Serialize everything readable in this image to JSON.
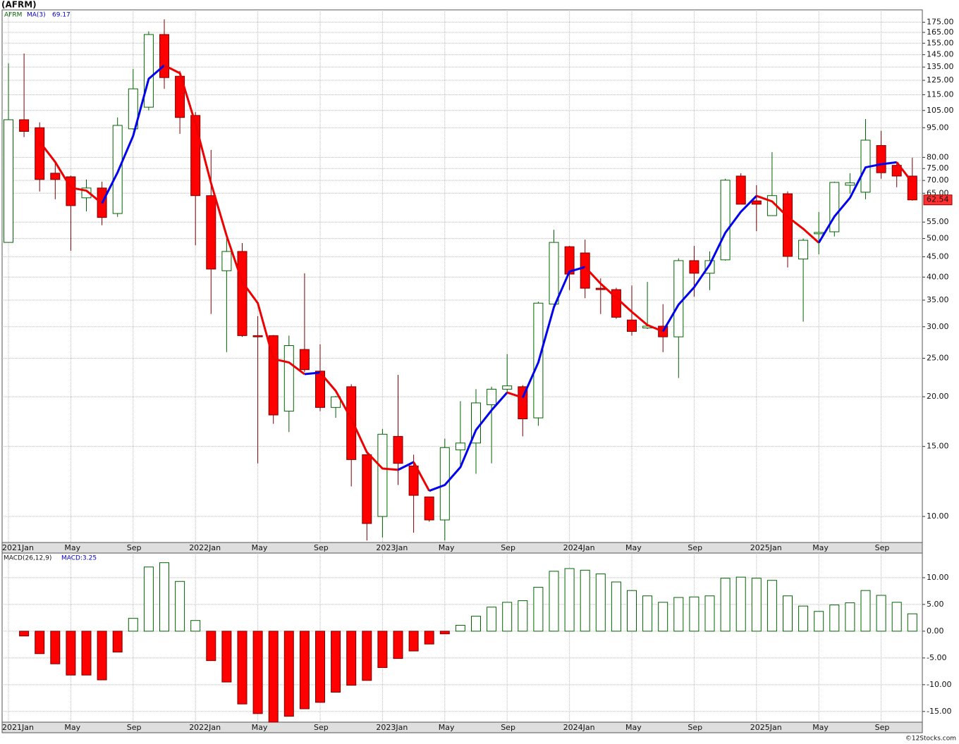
{
  "chart_data": [
    {
      "type": "candlestick",
      "title": "(AFRM)",
      "legend": "AFRM",
      "categories": [
        "2021Jan",
        null,
        null,
        null,
        "May",
        null,
        null,
        null,
        "Sep",
        null,
        null,
        null,
        "2022Jan",
        null,
        null,
        null,
        "May",
        null,
        null,
        null,
        "Sep",
        null,
        null,
        null,
        "2023Jan",
        null,
        null,
        null,
        "May",
        null,
        null,
        null,
        "Sep",
        null,
        null,
        null,
        "2024Jan",
        null,
        null,
        null,
        "May",
        null,
        null,
        null,
        "Sep",
        null,
        null,
        null,
        "2025Jan",
        null,
        null,
        null,
        "May",
        null,
        null,
        null,
        "Sep",
        null,
        null
      ],
      "open": [
        48.9,
        99.5,
        95,
        73,
        71.5,
        63.3,
        67,
        57.8,
        94.4,
        107,
        163,
        128,
        102,
        64.1,
        41.5,
        46.4,
        28.5,
        28.5,
        18.4,
        26.3,
        23.2,
        18.8,
        21.2,
        14.3,
        10.0,
        15.9,
        13.4,
        11.2,
        9.8,
        14.7,
        15.3,
        19.1,
        20.9,
        21.2,
        17.7,
        34.2,
        47.7,
        46.0,
        37.5,
        37.2,
        31.2,
        29.8,
        30.1,
        28.3,
        44.0,
        40.9,
        44.2,
        71.8,
        62.2,
        57.1,
        64.8,
        44.4,
        51.4,
        52.0,
        68.1,
        65.4,
        85.7,
        76.4,
        71.8
      ],
      "high": [
        138,
        146,
        98,
        77.9,
        72,
        70.4,
        69.5,
        100.8,
        133.5,
        166,
        178,
        132,
        104,
        83.5,
        50.1,
        48.7,
        31.9,
        28.6,
        28.5,
        40.9,
        27.1,
        20.1,
        21.5,
        14.3,
        16.6,
        22.7,
        14.3,
        11.2,
        15.7,
        19.5,
        20.9,
        21.2,
        25.6,
        21.4,
        34.7,
        52.6,
        47.9,
        49.7,
        39.7,
        37.6,
        38.1,
        38.9,
        34.2,
        44.6,
        47.9,
        46.4,
        70.7,
        73,
        68.1,
        82.5,
        65.7,
        50.0,
        58.3,
        69.5,
        73,
        99.9,
        93.3,
        77.9,
        79.9
      ],
      "low": [
        48.9,
        90,
        65.7,
        62.8,
        46.6,
        58.5,
        54,
        56.7,
        94,
        105,
        119,
        91.7,
        48.1,
        32.3,
        25.9,
        28.3,
        13.6,
        17.1,
        16.3,
        23.1,
        18.4,
        17.7,
        11.9,
        8.7,
        8.85,
        12.0,
        9.1,
        9.7,
        8.7,
        13.5,
        12.8,
        13.6,
        20.3,
        15.9,
        16.9,
        34,
        37.1,
        35.4,
        32.3,
        31.4,
        28.5,
        29.6,
        25.9,
        22.3,
        35.7,
        37.1,
        44,
        61,
        52.2,
        57,
        42.3,
        30.9,
        45.6,
        50.6,
        64.8,
        62.8,
        70.7,
        67.3,
        62.3
      ],
      "close": [
        99.5,
        93,
        70.4,
        70.4,
        60.5,
        67.0,
        56.5,
        96.3,
        119,
        163,
        127,
        100.8,
        64.1,
        41.9,
        46.4,
        28.5,
        28.3,
        18.0,
        26.9,
        23.4,
        18.8,
        20.0,
        13.9,
        9.6,
        16.1,
        13.6,
        11.3,
        9.8,
        14.9,
        15.3,
        19.3,
        20.9,
        21.3,
        17.6,
        34.4,
        48.9,
        40.7,
        37.5,
        37.2,
        31.7,
        29.2,
        30.1,
        28.3,
        44.0,
        40.9,
        44.0,
        70.1,
        61.0,
        61.0,
        64.1,
        45.1,
        49.5,
        51.8,
        69.2,
        69.0,
        88.4,
        73.2,
        71.8,
        62.54
      ],
      "up_color": "#ffffff",
      "up_edge": "#006400",
      "down_color": "#ff0000",
      "down_edge": "#7a0000",
      "log_scale": true,
      "grid": true,
      "ylim": [
        8.6,
        188
      ],
      "yticks": [
        {
          "value": 10,
          "label": "10.00"
        },
        {
          "value": 15,
          "label": "15.00"
        },
        {
          "value": 20,
          "label": "20.00"
        },
        {
          "value": 25,
          "label": "25.00"
        },
        {
          "value": 30,
          "label": "30.00"
        },
        {
          "value": 35,
          "label": "35.00"
        },
        {
          "value": 40,
          "label": "40.00"
        },
        {
          "value": 45,
          "label": "45.00"
        },
        {
          "value": 50,
          "label": "50.00"
        },
        {
          "value": 55,
          "label": "55.00"
        },
        {
          "value": 65,
          "label": "65.00"
        },
        {
          "value": 70,
          "label": "70.00"
        },
        {
          "value": 75,
          "label": "75.00"
        },
        {
          "value": 80,
          "label": "80.00"
        },
        {
          "value": 95,
          "label": "95.00"
        },
        {
          "value": 105,
          "label": "105.00"
        },
        {
          "value": 115,
          "label": "115.00"
        },
        {
          "value": 125,
          "label": "125.00"
        },
        {
          "value": 135,
          "label": "135.00"
        },
        {
          "value": 145,
          "label": "145.00"
        },
        {
          "value": 155,
          "label": "155.00"
        },
        {
          "value": 165,
          "label": "165.00"
        },
        {
          "value": 175,
          "label": "175.00"
        }
      ],
      "last_label_color": "#ff3030",
      "overlays": [
        {
          "name": "MA(3)",
          "rise_color": "#0000ee",
          "fall_color": "#ee0000",
          "values": [
            null,
            null,
            87.6,
            77.9,
            67.1,
            66.0,
            61.3,
            73.3,
            90.6,
            126.1,
            136.3,
            130.3,
            97.3,
            68.9,
            50.8,
            38.9,
            34.4,
            24.9,
            24.4,
            22.8,
            23.0,
            20.7,
            17.6,
            14.5,
            13.2,
            13.1,
            13.7,
            11.6,
            12.0,
            13.3,
            16.5,
            18.5,
            20.5,
            19.9,
            24.4,
            33.6,
            41.3,
            42.4,
            38.5,
            35.5,
            32.7,
            30.3,
            29.2,
            34.1,
            37.7,
            43.0,
            51.7,
            58.4,
            64.0,
            62.0,
            56.7,
            52.9,
            48.8,
            56.8,
            63.3,
            75.5,
            76.9,
            77.8,
            69.17
          ]
        }
      ]
    },
    {
      "type": "bar",
      "title": "MACD(26,12,9)",
      "legend": "MACD:3.25",
      "categories": [
        "2021Jan",
        null,
        null,
        null,
        "May",
        null,
        null,
        null,
        "Sep",
        null,
        null,
        null,
        "2022Jan",
        null,
        null,
        null,
        "May",
        null,
        null,
        null,
        "Sep",
        null,
        null,
        null,
        "2023Jan",
        null,
        null,
        null,
        "May",
        null,
        null,
        null,
        "Sep",
        null,
        null,
        null,
        "2024Jan",
        null,
        null,
        null,
        "May",
        null,
        null,
        null,
        "Sep",
        null,
        null,
        null,
        "2025Jan",
        null,
        null,
        null,
        "May",
        null,
        null,
        null,
        "Sep",
        null,
        null
      ],
      "values": [
        null,
        -0.9,
        -4.2,
        -6.1,
        -8.2,
        -8.2,
        -9.1,
        -3.9,
        2.4,
        12.0,
        12.8,
        9.3,
        2.0,
        -5.5,
        -9.5,
        -13.6,
        -15.4,
        -17.0,
        -15.9,
        -14.5,
        -13.3,
        -11.4,
        -10.1,
        -9.2,
        -6.8,
        -5.1,
        -3.7,
        -2.4,
        -0.5,
        1.1,
        2.8,
        4.5,
        5.4,
        5.7,
        8.2,
        11.2,
        11.7,
        11.4,
        10.7,
        9.2,
        7.6,
        6.6,
        5.4,
        6.3,
        6.4,
        6.6,
        9.9,
        10.1,
        9.9,
        9.5,
        6.6,
        4.7,
        3.7,
        4.9,
        5.3,
        7.6,
        6.7,
        5.4,
        3.25
      ],
      "pos_color": "#ffffff",
      "pos_edge": "#006400",
      "neg_color": "#ff0000",
      "neg_edge": "#7a0000",
      "grid": true,
      "ylim": [
        -17,
        14.6
      ],
      "yticks": [
        {
          "value": 10,
          "label": "10.00"
        },
        {
          "value": 5,
          "label": "5.00"
        },
        {
          "value": 0,
          "label": "0.00"
        },
        {
          "value": -5,
          "label": "-5.00"
        },
        {
          "value": -10,
          "label": "-10.00"
        },
        {
          "value": -15,
          "label": "-15.00"
        }
      ]
    }
  ],
  "footer": "©12Stocks.com"
}
